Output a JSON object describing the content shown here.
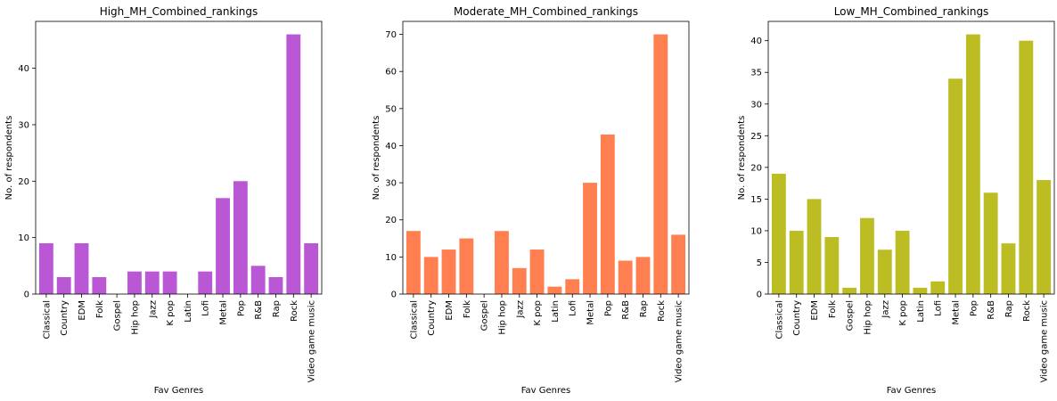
{
  "chart_data": [
    {
      "type": "bar",
      "title": "High_MH_Combined_rankings",
      "xlabel": "Fav Genres",
      "ylabel": "No. of respondents",
      "color": "#b957d4",
      "ylim": [
        0,
        48.3
      ],
      "yticks": [
        0,
        10,
        20,
        30,
        40
      ],
      "categories": [
        "Classical",
        "Country",
        "EDM",
        "Folk",
        "Gospel",
        "Hip hop",
        "Jazz",
        "K pop",
        "Latin",
        "Lofi",
        "Metal",
        "Pop",
        "R&B",
        "Rap",
        "Rock",
        "Video game music"
      ],
      "values": [
        9,
        3,
        9,
        3,
        0,
        4,
        4,
        4,
        0,
        4,
        17,
        20,
        5,
        3,
        46,
        9
      ]
    },
    {
      "type": "bar",
      "title": "Moderate_MH_Combined_rankings",
      "xlabel": "Fav Genres",
      "ylabel": "No. of respondents",
      "color": "#ff7f50",
      "ylim": [
        0,
        73.5
      ],
      "yticks": [
        0,
        10,
        20,
        30,
        40,
        50,
        60,
        70
      ],
      "categories": [
        "Classical",
        "Country",
        "EDM",
        "Folk",
        "Gospel",
        "Hip hop",
        "Jazz",
        "K pop",
        "Latin",
        "Lofi",
        "Metal",
        "Pop",
        "R&B",
        "Rap",
        "Rock",
        "Video game music"
      ],
      "values": [
        17,
        10,
        12,
        15,
        0,
        17,
        7,
        12,
        2,
        4,
        30,
        43,
        9,
        10,
        70,
        16
      ]
    },
    {
      "type": "bar",
      "title": "Low_MH_Combined_rankings",
      "xlabel": "Fav Genres",
      "ylabel": "No. of respondents",
      "color": "#bcbd22",
      "ylim": [
        0,
        43.05
      ],
      "yticks": [
        0,
        5,
        10,
        15,
        20,
        25,
        30,
        35,
        40
      ],
      "categories": [
        "Classical",
        "Country",
        "EDM",
        "Folk",
        "Gospel",
        "Hip hop",
        "Jazz",
        "K pop",
        "Latin",
        "Lofi",
        "Metal",
        "Pop",
        "R&B",
        "Rap",
        "Rock",
        "Video game music"
      ],
      "values": [
        19,
        10,
        15,
        9,
        1,
        12,
        7,
        10,
        1,
        2,
        34,
        41,
        16,
        8,
        40,
        18
      ]
    }
  ]
}
